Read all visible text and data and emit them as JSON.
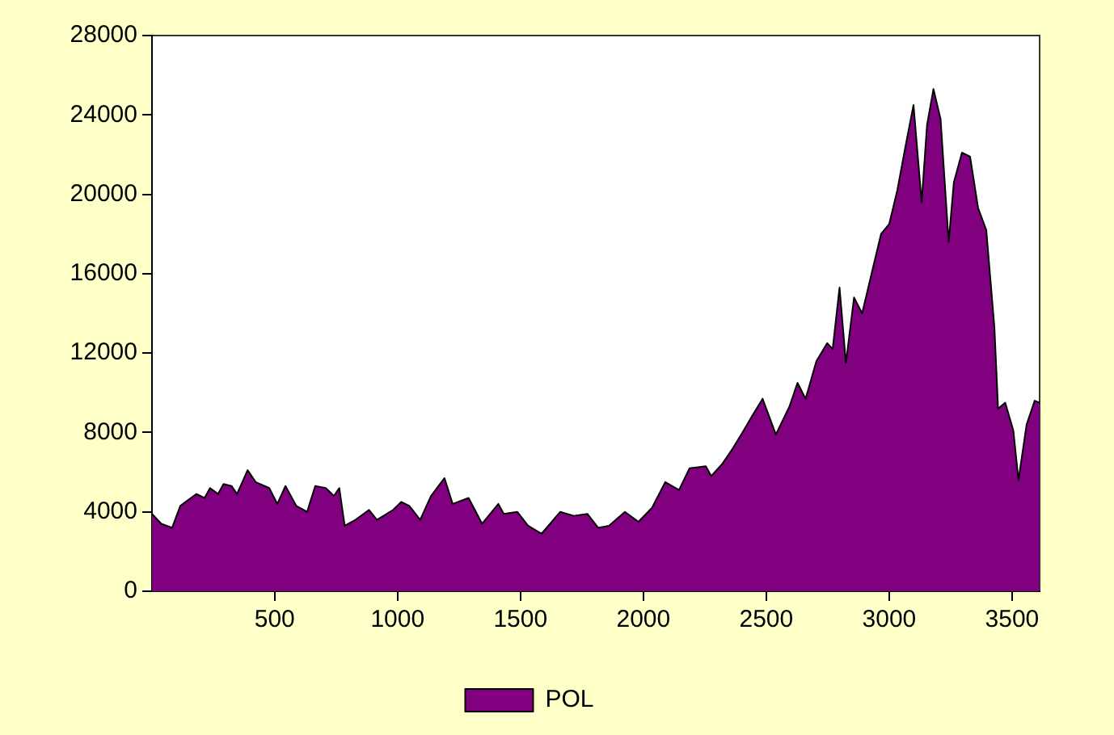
{
  "chart_data": {
    "type": "area",
    "x": [
      1,
      39,
      83,
      116,
      138,
      182,
      215,
      237,
      270,
      292,
      325,
      347,
      390,
      423,
      478,
      511,
      544,
      588,
      632,
      665,
      708,
      741,
      763,
      785,
      829,
      884,
      916,
      982,
      1015,
      1048,
      1092,
      1136,
      1191,
      1224,
      1289,
      1344,
      1410,
      1432,
      1487,
      1531,
      1586,
      1662,
      1717,
      1772,
      1816,
      1860,
      1925,
      1980,
      2035,
      2089,
      2145,
      2188,
      2254,
      2276,
      2320,
      2364,
      2408,
      2441,
      2485,
      2539,
      2594,
      2627,
      2660,
      2704,
      2748,
      2770,
      2798,
      2824,
      2857,
      2890,
      2934,
      2967,
      3000,
      3033,
      3066,
      3099,
      3132,
      3154,
      3180,
      3209,
      3242,
      3263,
      3296,
      3329,
      3362,
      3395,
      3428,
      3443,
      3472,
      3505,
      3526,
      3559,
      3592,
      3612
    ],
    "series": [
      {
        "name": "POL",
        "color": "#800080",
        "values": [
          3900,
          3400,
          3200,
          4300,
          4500,
          4900,
          4700,
          5200,
          4900,
          5400,
          5300,
          4900,
          6100,
          5500,
          5200,
          4400,
          5300,
          4300,
          4000,
          5300,
          5200,
          4800,
          5200,
          3300,
          3600,
          4100,
          3600,
          4100,
          4500,
          4300,
          3600,
          4800,
          5700,
          4400,
          4700,
          3400,
          4400,
          3900,
          4000,
          3300,
          2900,
          4000,
          3800,
          3900,
          3200,
          3300,
          4000,
          3500,
          4200,
          5500,
          5100,
          6200,
          6300,
          5800,
          6400,
          7200,
          8100,
          8800,
          9700,
          7900,
          9300,
          10500,
          9700,
          11600,
          12500,
          12200,
          15300,
          11500,
          14800,
          14000,
          16300,
          18000,
          18500,
          20200,
          22400,
          24500,
          19600,
          23500,
          25300,
          23800,
          17600,
          20600,
          22100,
          21900,
          19300,
          18200,
          13300,
          9200,
          9500,
          8100,
          5600,
          8400,
          9600,
          9500
        ]
      }
    ],
    "xlim": [
      1,
      3612
    ],
    "xticks": [
      500,
      1000,
      1500,
      2000,
      2500,
      3000,
      3500
    ],
    "ylim": [
      0,
      28000
    ],
    "yticks": [
      0,
      4000,
      8000,
      12000,
      16000,
      20000,
      24000,
      28000
    ],
    "grid": false,
    "legend": "bottom"
  }
}
